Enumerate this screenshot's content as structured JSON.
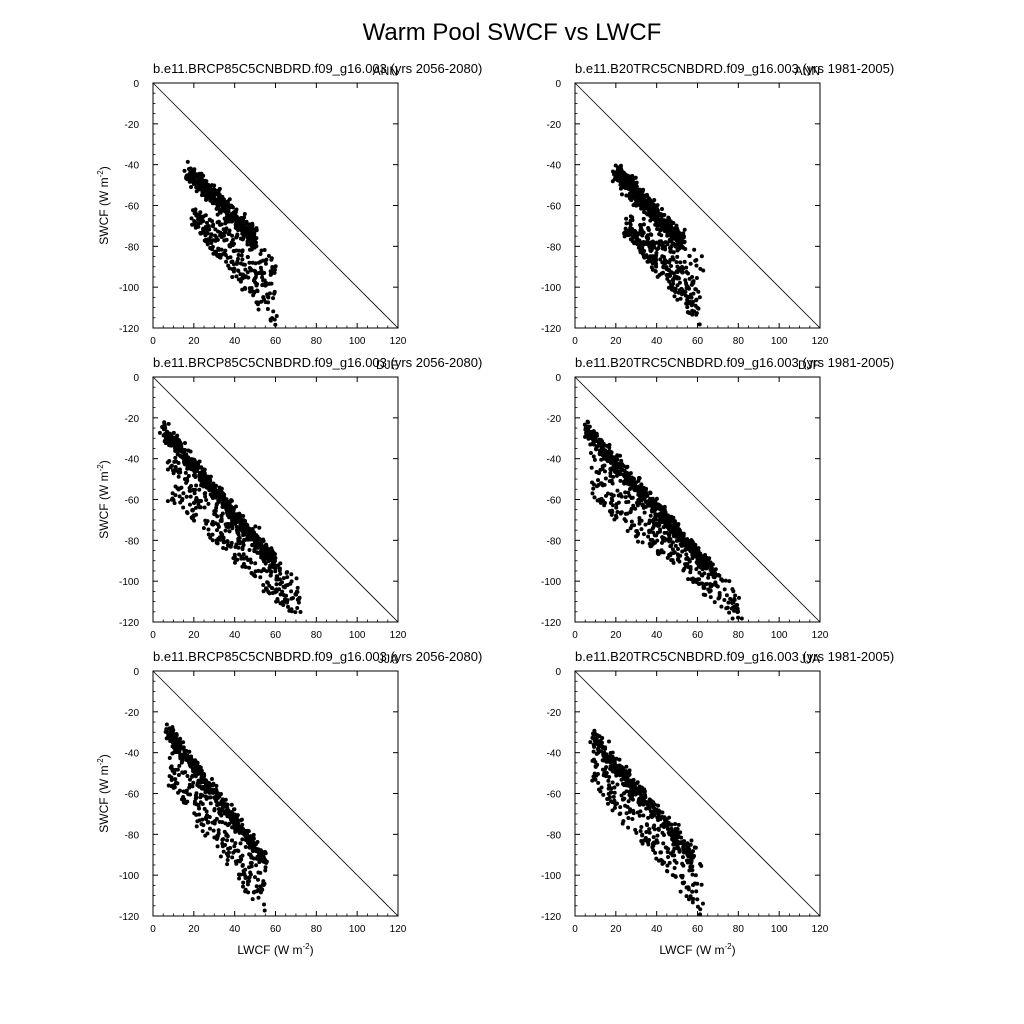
{
  "figure": {
    "title": "Warm Pool SWCF vs LWCF",
    "point_color": "#000000"
  },
  "chart_data": [
    {
      "type": "scatter",
      "title": "b.e11.BRCP85C5CNBDRD.f09_g16.003 (yrs 2056-2080)",
      "season": "ANN",
      "xlabel": "",
      "ylabel": "SWCF (W m-2)",
      "xlim": [
        0,
        120
      ],
      "ylim": [
        -120,
        0
      ],
      "xticks": [
        0,
        20,
        40,
        60,
        80,
        100,
        120
      ],
      "yticks": [
        0,
        -20,
        -40,
        -60,
        -80,
        -100,
        -120
      ],
      "reference_line": {
        "from": [
          0,
          0
        ],
        "to": [
          120,
          -120
        ]
      },
      "cloud": {
        "dense_band": {
          "from": [
            17,
            -42
          ],
          "to": [
            50,
            -75
          ],
          "spread": 7
        },
        "scatter_region": {
          "x": [
            20,
            60
          ],
          "y_upper": [
            -60,
            -85
          ],
          "y_lower": [
            -70,
            -120
          ]
        },
        "approx_points": 700
      }
    },
    {
      "type": "scatter",
      "title": "b.e11.B20TRC5CNBDRD.f09_g16.003 (yrs 1981-2005)",
      "season": "ANN",
      "xlabel": "",
      "ylabel": "",
      "xlim": [
        0,
        120
      ],
      "ylim": [
        -120,
        0
      ],
      "xticks": [
        0,
        20,
        40,
        60,
        80,
        100,
        120
      ],
      "yticks": [
        0,
        -20,
        -40,
        -60,
        -80,
        -100,
        -120
      ],
      "reference_line": {
        "from": [
          0,
          0
        ],
        "to": [
          120,
          -120
        ]
      },
      "cloud": {
        "dense_band": {
          "from": [
            20,
            -42
          ],
          "to": [
            53,
            -78
          ],
          "spread": 8
        },
        "scatter_region": {
          "x": [
            25,
            62
          ],
          "y_upper": [
            -65,
            -85
          ],
          "y_lower": [
            -75,
            -120
          ]
        },
        "approx_points": 750
      }
    },
    {
      "type": "scatter",
      "title": "b.e11.BRCP85C5CNBDRD.f09_g16.003 (yrs 2056-2080)",
      "season": "DJF",
      "xlabel": "",
      "ylabel": "SWCF (W m-2)",
      "xlim": [
        0,
        120
      ],
      "ylim": [
        -120,
        0
      ],
      "xticks": [
        0,
        20,
        40,
        60,
        80,
        100,
        120
      ],
      "yticks": [
        0,
        -20,
        -40,
        -60,
        -80,
        -100,
        -120
      ],
      "reference_line": {
        "from": [
          0,
          0
        ],
        "to": [
          120,
          -120
        ]
      },
      "cloud": {
        "dense_band": {
          "from": [
            5,
            -25
          ],
          "to": [
            60,
            -90
          ],
          "spread": 6
        },
        "scatter_region": {
          "x": [
            8,
            72
          ],
          "y_upper": [
            -30,
            -100
          ],
          "y_lower": [
            -60,
            -120
          ]
        },
        "approx_points": 900
      }
    },
    {
      "type": "scatter",
      "title": "b.e11.B20TRC5CNBDRD.f09_g16.003 (yrs 1981-2005)",
      "season": "DJF",
      "xlabel": "",
      "ylabel": "",
      "xlim": [
        0,
        120
      ],
      "ylim": [
        -120,
        0
      ],
      "xticks": [
        0,
        20,
        40,
        60,
        80,
        100,
        120
      ],
      "yticks": [
        0,
        -20,
        -40,
        -60,
        -80,
        -100,
        -120
      ],
      "reference_line": {
        "from": [
          0,
          0
        ],
        "to": [
          120,
          -120
        ]
      },
      "cloud": {
        "dense_band": {
          "from": [
            5,
            -24
          ],
          "to": [
            68,
            -95
          ],
          "spread": 6
        },
        "scatter_region": {
          "x": [
            8,
            80
          ],
          "y_upper": [
            -30,
            -105
          ],
          "y_lower": [
            -60,
            -120
          ]
        },
        "approx_points": 900
      }
    },
    {
      "type": "scatter",
      "title": "b.e11.BRCP85C5CNBDRD.f09_g16.003 (yrs 2056-2080)",
      "season": "JJA",
      "xlabel": "LWCF (W m-2)",
      "ylabel": "SWCF (W m-2)",
      "xlim": [
        0,
        120
      ],
      "ylim": [
        -120,
        0
      ],
      "xticks": [
        0,
        20,
        40,
        60,
        80,
        100,
        120
      ],
      "yticks": [
        0,
        -20,
        -40,
        -60,
        -80,
        -100,
        -120
      ],
      "reference_line": {
        "from": [
          0,
          0
        ],
        "to": [
          120,
          -120
        ]
      },
      "cloud": {
        "dense_band": {
          "from": [
            7,
            -28
          ],
          "to": [
            55,
            -92
          ],
          "spread": 6
        },
        "scatter_region": {
          "x": [
            8,
            55
          ],
          "y_upper": [
            -30,
            -90
          ],
          "y_lower": [
            -55,
            -120
          ]
        },
        "approx_points": 650
      }
    },
    {
      "type": "scatter",
      "title": "b.e11.B20TRC5CNBDRD.f09_g16.003 (yrs 1981-2005)",
      "season": "JJA",
      "xlabel": "LWCF (W m-2)",
      "ylabel": "",
      "xlim": [
        0,
        120
      ],
      "ylim": [
        -120,
        0
      ],
      "xticks": [
        0,
        20,
        40,
        60,
        80,
        100,
        120
      ],
      "yticks": [
        0,
        -20,
        -40,
        -60,
        -80,
        -100,
        -120
      ],
      "reference_line": {
        "from": [
          0,
          0
        ],
        "to": [
          120,
          -120
        ]
      },
      "cloud": {
        "dense_band": {
          "from": [
            9,
            -32
          ],
          "to": [
            58,
            -90
          ],
          "spread": 7
        },
        "scatter_region": {
          "x": [
            8,
            62
          ],
          "y_upper": [
            -30,
            -95
          ],
          "y_lower": [
            -55,
            -120
          ]
        },
        "approx_points": 600
      }
    }
  ]
}
